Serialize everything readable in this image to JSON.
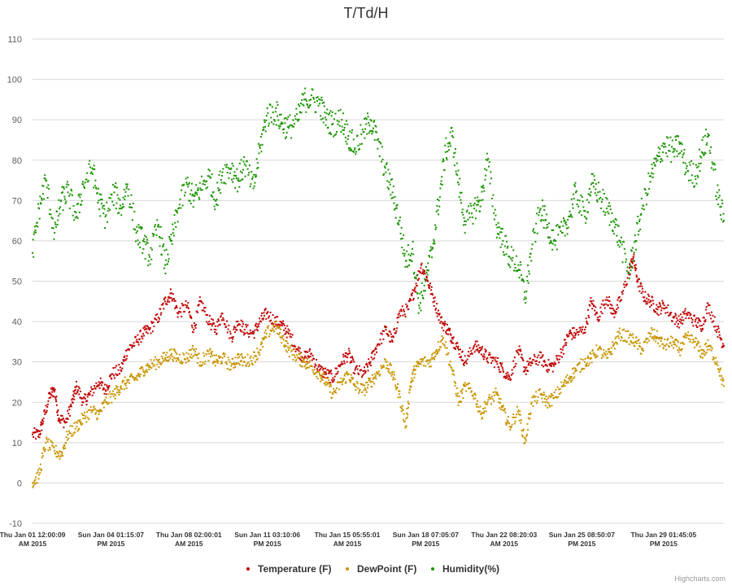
{
  "chart_data": {
    "type": "scatter",
    "title": "T/Td/H",
    "xlabel": "",
    "ylabel": "",
    "ylim": [
      -10,
      110
    ],
    "yticks": [
      -10,
      0,
      10,
      20,
      30,
      40,
      50,
      60,
      70,
      80,
      90,
      100,
      110
    ],
    "xlim_days": [
      0,
      31.3
    ],
    "grid": true,
    "legend_position": "bottom-center",
    "xticks": [
      {
        "line1": "Thu Jan 01 12:00:09",
        "line2": "AM 2015",
        "day": 0.0
      },
      {
        "line1": "Sun Jan 04 01:15:07",
        "line2": "PM 2015",
        "day": 3.55
      },
      {
        "line1": "Thu Jan 08 02:00:01",
        "line2": "AM 2015",
        "day": 7.08
      },
      {
        "line1": "Sun Jan 11 03:10:06",
        "line2": "PM 2015",
        "day": 10.63
      },
      {
        "line1": "Thu Jan 15 05:55:01",
        "line2": "AM 2015",
        "day": 14.25
      },
      {
        "line1": "Sun Jan 18 07:05:07",
        "line2": "PM 2015",
        "day": 17.8
      },
      {
        "line1": "Thu Jan 22 08:20:03",
        "line2": "AM 2015",
        "day": 21.35
      },
      {
        "line1": "Sun Jan 25 08:50:07",
        "line2": "PM 2015",
        "day": 24.87
      },
      {
        "line1": "Thu Jan 29 01:45:05",
        "line2": "PM 2015",
        "day": 28.57
      }
    ],
    "series": [
      {
        "name": "Temperature (F)",
        "color": "#c00000",
        "points": [
          [
            0,
            12
          ],
          [
            0.3,
            12
          ],
          [
            0.5,
            16
          ],
          [
            0.8,
            22
          ],
          [
            1.0,
            23
          ],
          [
            1.2,
            16
          ],
          [
            1.5,
            15
          ],
          [
            1.8,
            20
          ],
          [
            2.0,
            24
          ],
          [
            2.3,
            20
          ],
          [
            2.6,
            22
          ],
          [
            3.0,
            25
          ],
          [
            3.3,
            23
          ],
          [
            3.6,
            27
          ],
          [
            4.0,
            28
          ],
          [
            4.3,
            33
          ],
          [
            4.7,
            35
          ],
          [
            5.0,
            37
          ],
          [
            5.3,
            38
          ],
          [
            5.7,
            41
          ],
          [
            6.0,
            45
          ],
          [
            6.3,
            47
          ],
          [
            6.6,
            42
          ],
          [
            7.0,
            44
          ],
          [
            7.3,
            38
          ],
          [
            7.6,
            45
          ],
          [
            8.0,
            40
          ],
          [
            8.3,
            38
          ],
          [
            8.6,
            42
          ],
          [
            9.0,
            36
          ],
          [
            9.3,
            40
          ],
          [
            9.6,
            38
          ],
          [
            10.0,
            37
          ],
          [
            10.3,
            40
          ],
          [
            10.6,
            42
          ],
          [
            11.0,
            40
          ],
          [
            11.3,
            39
          ],
          [
            11.6,
            37
          ],
          [
            12.0,
            33
          ],
          [
            12.3,
            31
          ],
          [
            12.6,
            32
          ],
          [
            13.0,
            28
          ],
          [
            13.3,
            27
          ],
          [
            13.6,
            26
          ],
          [
            14.0,
            30
          ],
          [
            14.3,
            32
          ],
          [
            14.6,
            28
          ],
          [
            15.0,
            27
          ],
          [
            15.3,
            30
          ],
          [
            15.6,
            34
          ],
          [
            16.0,
            38
          ],
          [
            16.3,
            35
          ],
          [
            16.6,
            42
          ],
          [
            17.0,
            43
          ],
          [
            17.3,
            48
          ],
          [
            17.6,
            54
          ],
          [
            17.9,
            50
          ],
          [
            18.2,
            45
          ],
          [
            18.5,
            40
          ],
          [
            18.8,
            38
          ],
          [
            19.0,
            36
          ],
          [
            19.3,
            33
          ],
          [
            19.6,
            30
          ],
          [
            20.0,
            34
          ],
          [
            20.3,
            33
          ],
          [
            20.6,
            31
          ],
          [
            21.0,
            30
          ],
          [
            21.3,
            28
          ],
          [
            21.6,
            26
          ],
          [
            22.0,
            33
          ],
          [
            22.3,
            28
          ],
          [
            22.6,
            30
          ],
          [
            23.0,
            31
          ],
          [
            23.3,
            29
          ],
          [
            23.6,
            29
          ],
          [
            24.0,
            33
          ],
          [
            24.3,
            37
          ],
          [
            24.6,
            37
          ],
          [
            25.0,
            38
          ],
          [
            25.3,
            45
          ],
          [
            25.6,
            41
          ],
          [
            26.0,
            46
          ],
          [
            26.3,
            42
          ],
          [
            26.6,
            45
          ],
          [
            27.0,
            52
          ],
          [
            27.2,
            56
          ],
          [
            27.4,
            50
          ],
          [
            27.7,
            46
          ],
          [
            28.0,
            45
          ],
          [
            28.3,
            43
          ],
          [
            28.6,
            44
          ],
          [
            29.0,
            41
          ],
          [
            29.3,
            40
          ],
          [
            29.6,
            42
          ],
          [
            30.0,
            40
          ],
          [
            30.3,
            39
          ],
          [
            30.6,
            44
          ],
          [
            31.0,
            38
          ],
          [
            31.3,
            34
          ]
        ]
      },
      {
        "name": "DewPoint (F)",
        "color": "#c89400",
        "points": [
          [
            0,
            0
          ],
          [
            0.3,
            2
          ],
          [
            0.6,
            10
          ],
          [
            1.0,
            8
          ],
          [
            1.3,
            7
          ],
          [
            1.6,
            12
          ],
          [
            2.0,
            14
          ],
          [
            2.3,
            16
          ],
          [
            2.7,
            18
          ],
          [
            3.0,
            17
          ],
          [
            3.3,
            20
          ],
          [
            3.7,
            22
          ],
          [
            4.0,
            24
          ],
          [
            4.3,
            25
          ],
          [
            4.7,
            26
          ],
          [
            5.0,
            28
          ],
          [
            5.3,
            29
          ],
          [
            5.7,
            30
          ],
          [
            6.0,
            31
          ],
          [
            6.3,
            32
          ],
          [
            6.6,
            31
          ],
          [
            7.0,
            31
          ],
          [
            7.3,
            33
          ],
          [
            7.6,
            30
          ],
          [
            8.0,
            32
          ],
          [
            8.3,
            30
          ],
          [
            8.6,
            31
          ],
          [
            9.0,
            29
          ],
          [
            9.3,
            31
          ],
          [
            9.6,
            30
          ],
          [
            10.0,
            31
          ],
          [
            10.3,
            33
          ],
          [
            10.6,
            37
          ],
          [
            11.0,
            39
          ],
          [
            11.3,
            36
          ],
          [
            11.6,
            33
          ],
          [
            12.0,
            31
          ],
          [
            12.3,
            30
          ],
          [
            12.6,
            29
          ],
          [
            13.0,
            27
          ],
          [
            13.3,
            25
          ],
          [
            13.6,
            22
          ],
          [
            14.0,
            25
          ],
          [
            14.3,
            27
          ],
          [
            14.6,
            24
          ],
          [
            15.0,
            23
          ],
          [
            15.3,
            25
          ],
          [
            15.6,
            27
          ],
          [
            16.0,
            30
          ],
          [
            16.3,
            27
          ],
          [
            16.6,
            22
          ],
          [
            16.9,
            14
          ],
          [
            17.1,
            24
          ],
          [
            17.3,
            28
          ],
          [
            17.6,
            30
          ],
          [
            18.0,
            30
          ],
          [
            18.3,
            33
          ],
          [
            18.6,
            36
          ],
          [
            19.0,
            28
          ],
          [
            19.3,
            20
          ],
          [
            19.6,
            24
          ],
          [
            20.0,
            22
          ],
          [
            20.3,
            17
          ],
          [
            20.6,
            20
          ],
          [
            21.0,
            22
          ],
          [
            21.3,
            18
          ],
          [
            21.6,
            14
          ],
          [
            22.0,
            18
          ],
          [
            22.3,
            10
          ],
          [
            22.6,
            20
          ],
          [
            23.0,
            22
          ],
          [
            23.3,
            20
          ],
          [
            23.6,
            21
          ],
          [
            24.0,
            24
          ],
          [
            24.3,
            26
          ],
          [
            24.6,
            28
          ],
          [
            25.0,
            30
          ],
          [
            25.3,
            31
          ],
          [
            25.6,
            33
          ],
          [
            26.0,
            31
          ],
          [
            26.3,
            34
          ],
          [
            26.6,
            37
          ],
          [
            27.0,
            36
          ],
          [
            27.3,
            35
          ],
          [
            27.6,
            33
          ],
          [
            28.0,
            37
          ],
          [
            28.3,
            36
          ],
          [
            28.6,
            34
          ],
          [
            29.0,
            35
          ],
          [
            29.3,
            33
          ],
          [
            29.6,
            36
          ],
          [
            30.0,
            35
          ],
          [
            30.3,
            32
          ],
          [
            30.6,
            34
          ],
          [
            31.0,
            30
          ],
          [
            31.3,
            24
          ]
        ]
      },
      {
        "name": "Humidity(%)",
        "color": "#1a9400",
        "points": [
          [
            0,
            57
          ],
          [
            0.3,
            68
          ],
          [
            0.6,
            75
          ],
          [
            1.0,
            62
          ],
          [
            1.3,
            70
          ],
          [
            1.6,
            72
          ],
          [
            2.0,
            66
          ],
          [
            2.3,
            74
          ],
          [
            2.7,
            78
          ],
          [
            3.0,
            70
          ],
          [
            3.3,
            66
          ],
          [
            3.7,
            72
          ],
          [
            4.0,
            68
          ],
          [
            4.3,
            74
          ],
          [
            4.7,
            62
          ],
          [
            5.0,
            60
          ],
          [
            5.3,
            56
          ],
          [
            5.7,
            64
          ],
          [
            6.0,
            54
          ],
          [
            6.3,
            60
          ],
          [
            6.6,
            68
          ],
          [
            7.0,
            74
          ],
          [
            7.3,
            70
          ],
          [
            7.6,
            73
          ],
          [
            8.0,
            76
          ],
          [
            8.3,
            70
          ],
          [
            8.6,
            77
          ],
          [
            9.0,
            78
          ],
          [
            9.3,
            75
          ],
          [
            9.6,
            79
          ],
          [
            10.0,
            73
          ],
          [
            10.3,
            83
          ],
          [
            10.6,
            91
          ],
          [
            11.0,
            92
          ],
          [
            11.3,
            89
          ],
          [
            11.6,
            88
          ],
          [
            12.0,
            90
          ],
          [
            12.3,
            95
          ],
          [
            12.6,
            95
          ],
          [
            13.0,
            94
          ],
          [
            13.3,
            90
          ],
          [
            13.6,
            89
          ],
          [
            14.0,
            90
          ],
          [
            14.3,
            86
          ],
          [
            14.6,
            83
          ],
          [
            15.0,
            87
          ],
          [
            15.3,
            90
          ],
          [
            15.6,
            85
          ],
          [
            16.0,
            77
          ],
          [
            16.3,
            72
          ],
          [
            16.6,
            65
          ],
          [
            16.9,
            55
          ],
          [
            17.2,
            58
          ],
          [
            17.5,
            44
          ],
          [
            17.8,
            50
          ],
          [
            18.1,
            58
          ],
          [
            18.4,
            70
          ],
          [
            18.7,
            82
          ],
          [
            19.0,
            86
          ],
          [
            19.3,
            74
          ],
          [
            19.6,
            64
          ],
          [
            20.0,
            68
          ],
          [
            20.3,
            70
          ],
          [
            20.6,
            80
          ],
          [
            21.0,
            64
          ],
          [
            21.3,
            60
          ],
          [
            21.6,
            56
          ],
          [
            22.0,
            54
          ],
          [
            22.3,
            46
          ],
          [
            22.6,
            58
          ],
          [
            23.0,
            68
          ],
          [
            23.3,
            64
          ],
          [
            23.6,
            60
          ],
          [
            24.0,
            62
          ],
          [
            24.3,
            66
          ],
          [
            24.6,
            72
          ],
          [
            25.0,
            66
          ],
          [
            25.3,
            74
          ],
          [
            25.6,
            72
          ],
          [
            26.0,
            68
          ],
          [
            26.3,
            65
          ],
          [
            26.6,
            60
          ],
          [
            27.0,
            52
          ],
          [
            27.3,
            60
          ],
          [
            27.6,
            68
          ],
          [
            28.0,
            76
          ],
          [
            28.3,
            80
          ],
          [
            28.6,
            84
          ],
          [
            29.0,
            82
          ],
          [
            29.3,
            84
          ],
          [
            29.6,
            78
          ],
          [
            30.0,
            76
          ],
          [
            30.3,
            82
          ],
          [
            30.6,
            86
          ],
          [
            31.0,
            72
          ],
          [
            31.3,
            65
          ]
        ]
      }
    ]
  },
  "credits": "Highcharts.com"
}
